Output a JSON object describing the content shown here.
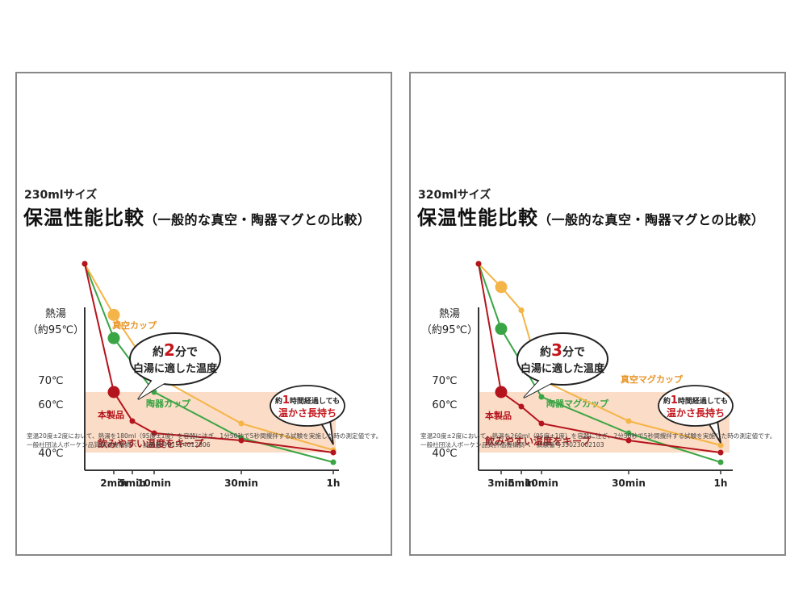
{
  "panels": [
    {
      "size_label": "230mlサイズ",
      "title": "保温性能比較",
      "subtitle": "（一般的な真空・陶器マグとの比較）",
      "footnote_line1": "室温20度±2度において、熱湯を180ml（95度±1度）を容器に注ぎ、1分50秒で5秒間攪拌する試験を実施した時の測定値です。",
      "footnote_line2": "一般社団法人ボーケン品質評価機構調べ　試験番号61524012806",
      "chart_data": {
        "type": "line",
        "y_tick_labels": [
          "熱湯",
          "（約95℃）",
          "70℃",
          "60℃",
          "40℃"
        ],
        "x_tick_labels": [
          "2min",
          "5min",
          "10min",
          "30min",
          "1h"
        ],
        "x_minutes": [
          2,
          5,
          10,
          30,
          60
        ],
        "band": {
          "label": "飲みやすい温度をキープ",
          "from": 40,
          "to": 65,
          "unit": "℃"
        },
        "callout_center": {
          "line1_pre": "約",
          "line1_num": "2",
          "line1_post": "分で",
          "line2": "白湯に適した温度"
        },
        "callout_right": {
          "line1_pre": "約",
          "line1_num": "1",
          "line1_post": "時間経過しても",
          "line2": "温かさ長持ち"
        },
        "series": [
          {
            "name": "本製品",
            "color": "#b4141d",
            "x": [
              0,
              2,
              5,
              10,
              30,
              60
            ],
            "y": [
              95,
              65,
              53,
              48,
              45,
              40
            ]
          },
          {
            "name": "真空カップ",
            "color": "#f5b447",
            "x": [
              0,
              2,
              10,
              30,
              60
            ],
            "y": [
              95,
              84,
              71,
              52,
              41
            ]
          },
          {
            "name": "陶器カップ",
            "color": "#3aa544",
            "x": [
              0,
              2,
              10,
              30,
              60
            ],
            "y": [
              95,
              79,
              65,
              46,
              36
            ]
          }
        ]
      }
    },
    {
      "size_label": "320mlサイズ",
      "title": "保温性能比較",
      "subtitle": "（一般的な真空・陶器マグとの比較）",
      "footnote_line1": "室温20度±2度において、熱湯を260ml（95度±1度）を容器に注ぎ、2分50秒で5秒間攪拌する試験を実施した時の測定値です。",
      "footnote_line2": "一般社団法人ボーケン品質評価機構調べ　試験番号35023002103",
      "chart_data": {
        "type": "line",
        "y_tick_labels": [
          "熱湯",
          "（約95℃）",
          "70℃",
          "60℃",
          "40℃"
        ],
        "x_tick_labels": [
          "3min",
          "5min",
          "10min",
          "30min",
          "1h"
        ],
        "x_minutes": [
          3,
          5,
          10,
          30,
          60
        ],
        "band": {
          "label": "飲みやすい温度をキープ",
          "from": 40,
          "to": 65,
          "unit": "℃"
        },
        "callout_center": {
          "line1_pre": "約",
          "line1_num": "3",
          "line1_post": "分で",
          "line2": "白湯に適した温度"
        },
        "callout_right": {
          "line1_pre": "約",
          "line1_num": "1",
          "line1_post": "時間経過しても",
          "line2": "温かさ長持ち"
        },
        "series": [
          {
            "name": "本製品",
            "color": "#b4141d",
            "x": [
              0,
              3,
              5,
              10,
              30,
              60
            ],
            "y": [
              95,
              65,
              59,
              52,
              45,
              40
            ]
          },
          {
            "name": "真空マグカップ",
            "color": "#f5b447",
            "x": [
              0,
              3,
              5,
              10,
              30,
              60
            ],
            "y": [
              95,
              90,
              85,
              70,
              53,
              43
            ]
          },
          {
            "name": "陶器マグカップ",
            "color": "#3aa544",
            "x": [
              0,
              3,
              10,
              30,
              60
            ],
            "y": [
              95,
              81,
              63,
              48,
              36
            ]
          }
        ]
      }
    }
  ]
}
